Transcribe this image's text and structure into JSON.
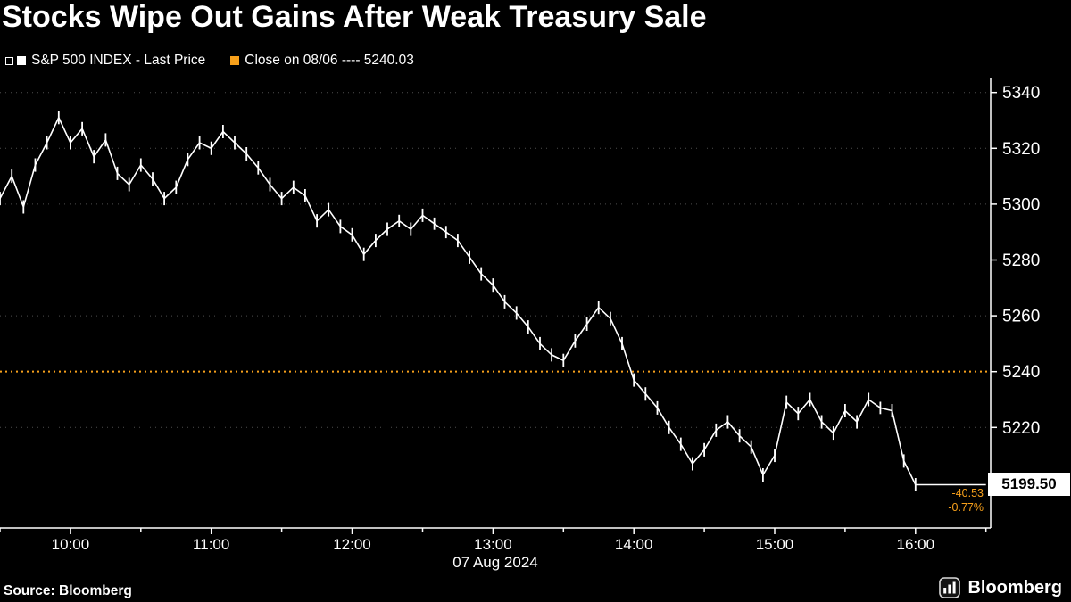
{
  "title": "Stocks Wipe Out Gains After Weak Treasury Sale",
  "legend": {
    "items": [
      {
        "label": "S&P 500 INDEX - Last Price",
        "color": "#ffffff"
      },
      {
        "label": "Close on 08/06 ---- 5240.03",
        "color": "#f7a01b"
      }
    ]
  },
  "price_callout": {
    "last": "5199.50",
    "change": "-40.53",
    "change_pct": "-0.77%"
  },
  "footer": {
    "source": "Source: Bloomberg",
    "brand": "Bloomberg"
  },
  "colors": {
    "background": "#000000",
    "price_line": "#ffffff",
    "prev_close_line": "#f7a01b",
    "axis": "#ffffff",
    "change_text": "#f7a01b",
    "last_price_box_bg": "#ffffff",
    "last_price_box_text": "#000000"
  },
  "chart_data": {
    "type": "line",
    "title": "Stocks Wipe Out Gains After Weak Treasury Sale",
    "series_name": "S&P 500 INDEX - Last Price",
    "date_label": "07 Aug 2024",
    "prev_close": 5240.03,
    "last": 5199.5,
    "ylim": [
      5184,
      5345
    ],
    "y_ticks": [
      5340,
      5320,
      5300,
      5280,
      5260,
      5240,
      5220
    ],
    "xlim_minutes": [
      570,
      992
    ],
    "x_ticks": [
      {
        "m": 600,
        "label": "10:00"
      },
      {
        "m": 660,
        "label": "11:00"
      },
      {
        "m": 720,
        "label": "12:00"
      },
      {
        "m": 780,
        "label": "13:00"
      },
      {
        "m": 840,
        "label": "14:00"
      },
      {
        "m": 900,
        "label": "15:00"
      },
      {
        "m": 960,
        "label": "16:00"
      }
    ],
    "x_start_minute": 570,
    "x_step_minutes": 5,
    "values": [
      5302,
      5310,
      5299,
      5314,
      5322,
      5331,
      5322,
      5327,
      5317,
      5323,
      5311,
      5307,
      5314,
      5309,
      5302,
      5306,
      5316,
      5322,
      5320,
      5326,
      5322,
      5318,
      5313,
      5307,
      5302,
      5306,
      5303,
      5294,
      5298,
      5292,
      5289,
      5282,
      5287,
      5291,
      5294,
      5291,
      5296,
      5293,
      5290,
      5287,
      5281,
      5275,
      5271,
      5265,
      5261,
      5256,
      5250,
      5246,
      5244,
      5251,
      5257,
      5263,
      5259,
      5250,
      5237,
      5232,
      5227,
      5220,
      5214,
      5207,
      5212,
      5219,
      5222,
      5217,
      5213,
      5203,
      5210,
      5229,
      5225,
      5230,
      5222,
      5218,
      5226,
      5222,
      5230,
      5227,
      5226,
      5208,
      5199.5,
      5199.5,
      5199.5,
      5199.5,
      5199.5,
      5199.5,
      5199.5
    ]
  }
}
